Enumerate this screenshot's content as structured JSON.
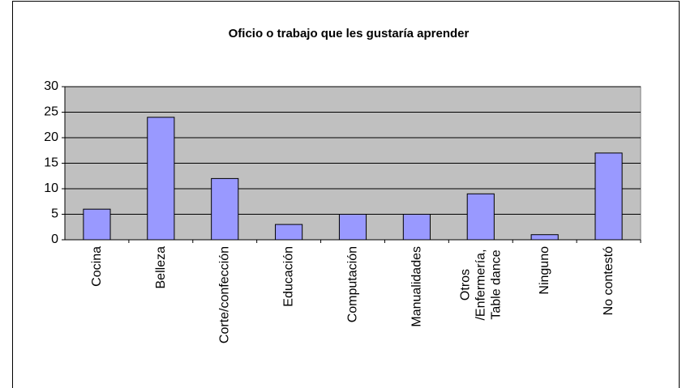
{
  "chart_data": {
    "type": "bar",
    "title": "Oficio o trabajo que les gustaría aprender",
    "categories": [
      "Cocina",
      "Belleza",
      "Corte/confección",
      "Educación",
      "Computación",
      "Manualidades",
      "Otros /Enfermería, Table dance",
      "Ninguno",
      "No contestó"
    ],
    "values": [
      6,
      24,
      12,
      3,
      5,
      5,
      9,
      1,
      17
    ],
    "color": "#9999ff",
    "ylim": [
      0,
      30
    ],
    "yticks": [
      0,
      5,
      10,
      15,
      20,
      25,
      30
    ],
    "grid": true
  }
}
